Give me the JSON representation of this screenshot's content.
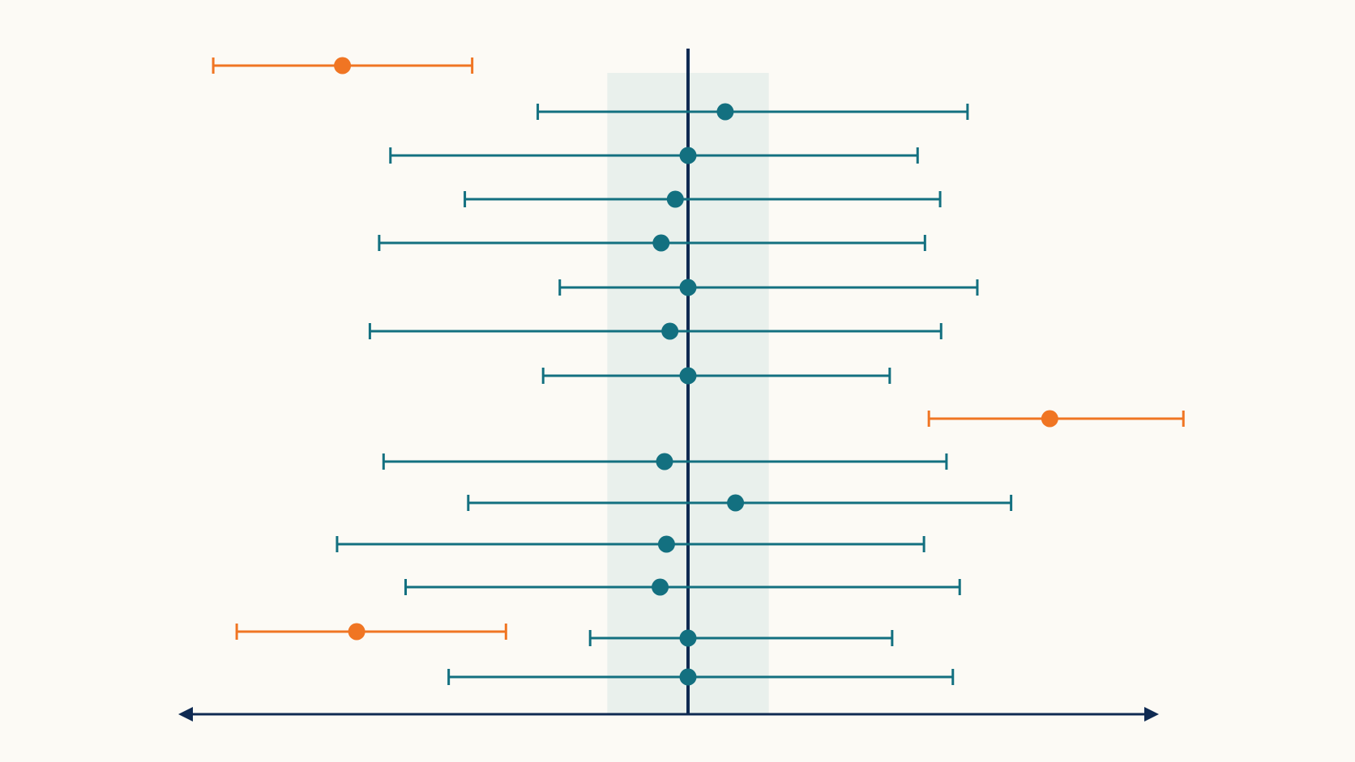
{
  "chart_data": {
    "type": "forest",
    "title": "",
    "xlabel": "",
    "ylabel": "",
    "grid": false,
    "xlim": [
      -1.0,
      1.0
    ],
    "reference_value": 0.0,
    "highlight_band": [
      -0.165,
      0.165
    ],
    "x_axis_arrows": "both",
    "colors": {
      "background": "#fcfaf5",
      "band": "#e9f0ec",
      "axis": "#0f2a52",
      "reference_line": "#0f2a52",
      "typical": "#137080",
      "outlier": "#f07523"
    },
    "rows": [
      {
        "estimate": -0.706,
        "lower": -0.97,
        "upper": -0.441,
        "highlighted": true
      },
      {
        "estimate": 0.076,
        "lower": -0.307,
        "upper": 0.571,
        "highlighted": false
      },
      {
        "estimate": 0.0,
        "lower": -0.608,
        "upper": 0.469,
        "highlighted": false
      },
      {
        "estimate": -0.026,
        "lower": -0.456,
        "upper": 0.515,
        "highlighted": false
      },
      {
        "estimate": -0.055,
        "lower": -0.631,
        "upper": 0.484,
        "highlighted": false
      },
      {
        "estimate": 0.0,
        "lower": -0.262,
        "upper": 0.591,
        "highlighted": false
      },
      {
        "estimate": -0.037,
        "lower": -0.65,
        "upper": 0.517,
        "highlighted": false
      },
      {
        "estimate": 0.0,
        "lower": -0.296,
        "upper": 0.412,
        "highlighted": false
      },
      {
        "estimate": 0.739,
        "lower": 0.492,
        "upper": 1.012,
        "highlighted": true
      },
      {
        "estimate": -0.048,
        "lower": -0.622,
        "upper": 0.528,
        "highlighted": false
      },
      {
        "estimate": 0.097,
        "lower": -0.449,
        "upper": 0.66,
        "highlighted": false
      },
      {
        "estimate": -0.044,
        "lower": -0.717,
        "upper": 0.482,
        "highlighted": false
      },
      {
        "estimate": -0.057,
        "lower": -0.577,
        "upper": 0.555,
        "highlighted": false
      },
      {
        "estimate": -0.677,
        "lower": -0.922,
        "upper": -0.372,
        "highlighted": true
      },
      {
        "estimate": 0.0,
        "lower": -0.2,
        "upper": 0.417,
        "highlighted": false
      },
      {
        "estimate": 0.0,
        "lower": -0.489,
        "upper": 0.541,
        "highlighted": false
      }
    ]
  }
}
